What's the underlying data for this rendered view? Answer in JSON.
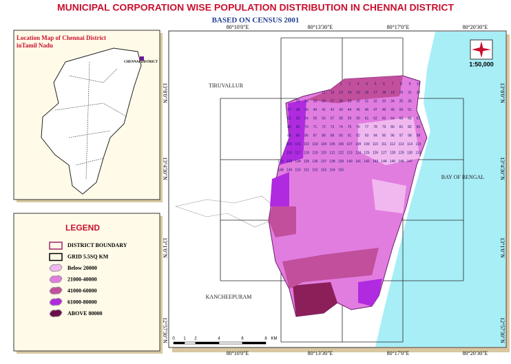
{
  "title": "MUNICIPAL CORPORATION WISE POPULATION DISTRIBUTION  IN CHENNAI DISTRICT",
  "subtitle": "BASED ON CENSUS 2001",
  "inset": {
    "title_line1": "Location Map of Chennai District",
    "title_line2": "inTamil Nadu",
    "district_label": "CHENNAI DISTRICT"
  },
  "legend": {
    "title": "LEGEND",
    "items": [
      "DISTRICT BOUNDARY",
      "GRID 5.5SQ KM",
      "Below 20000",
      "21000-40000",
      "41000-60000",
      "61000-80000",
      "ABOVE 80000"
    ]
  },
  "lon_labels": [
    "80°10'0\"E",
    "80°13'30\"E",
    "80°17'0\"E",
    "80°20'30\"E"
  ],
  "lat_labels": [
    "13°8'0\"N",
    "13°4'30\"N",
    "13°1'0\"N",
    "12°57'30\"N"
  ],
  "places": [
    "TIRUVALLUR",
    "KANCHEEPURAM",
    "BAY OF BENGAL"
  ],
  "scale_ratio": "1:50,000",
  "scale_bar": [
    "0",
    "1",
    "2",
    "4",
    "6",
    "8",
    "KM"
  ],
  "ward_labels": [
    "1",
    "2",
    "3",
    "4",
    "5",
    "6",
    "7",
    "8",
    "9",
    "10",
    "11",
    "12",
    "13",
    "14",
    "15",
    "16",
    "17",
    "18",
    "19",
    "20",
    "21",
    "22",
    "23",
    "24",
    "25",
    "26",
    "27",
    "28",
    "29",
    "30",
    "31",
    "32",
    "33",
    "34",
    "35",
    "36",
    "37",
    "38",
    "39",
    "40",
    "41",
    "42",
    "43",
    "44",
    "45",
    "46",
    "47",
    "48",
    "49",
    "50",
    "51",
    "52",
    "53",
    "54",
    "55",
    "56",
    "57",
    "58",
    "59",
    "60",
    "61",
    "62",
    "63",
    "64",
    "65",
    "66",
    "67",
    "68",
    "69",
    "70",
    "71",
    "72",
    "73",
    "74",
    "75",
    "76",
    "77",
    "78",
    "79",
    "80",
    "81",
    "82",
    "83",
    "84",
    "85",
    "86",
    "87",
    "88",
    "89",
    "90",
    "91",
    "92",
    "93",
    "94",
    "95",
    "96",
    "97",
    "98",
    "99",
    "100",
    "101",
    "102",
    "103",
    "104",
    "105",
    "106",
    "107",
    "108",
    "109",
    "110",
    "111",
    "112",
    "113",
    "114",
    "115",
    "116",
    "117",
    "118",
    "119",
    "120",
    "121",
    "122",
    "123",
    "124",
    "125",
    "126",
    "127",
    "128",
    "129",
    "130",
    "131",
    "132",
    "133",
    "134",
    "135",
    "136",
    "137",
    "138",
    "139",
    "140",
    "141",
    "142",
    "143",
    "144",
    "145",
    "146",
    "147",
    "148",
    "149",
    "150",
    "151",
    "152",
    "153",
    "154",
    "155"
  ]
}
